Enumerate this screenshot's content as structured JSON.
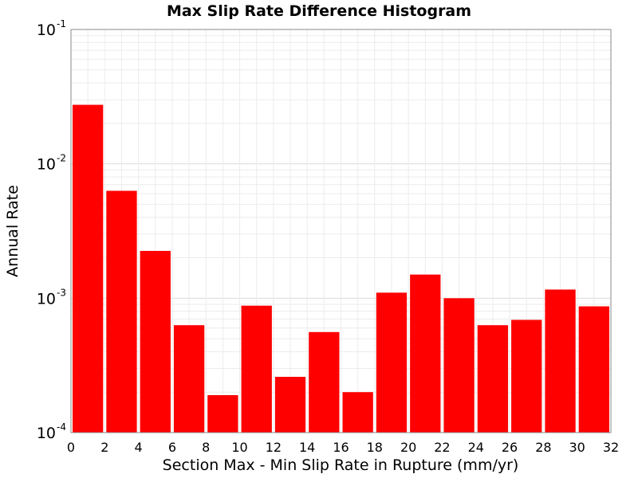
{
  "chart_data": {
    "type": "bar",
    "title": "Max Slip Rate Difference Histogram",
    "xlabel": "Section Max - Min Slip Rate in Rupture (mm/yr)",
    "ylabel": "Annual Rate",
    "xlim": [
      0,
      32
    ],
    "ylim": [
      0.0001,
      0.1
    ],
    "yscale": "log",
    "grid": true,
    "x_ticks": [
      "0",
      "2",
      "4",
      "6",
      "8",
      "10",
      "12",
      "14",
      "16",
      "18",
      "20",
      "22",
      "24",
      "26",
      "28",
      "30",
      "32"
    ],
    "y_ticks": [
      {
        "base": "10",
        "exp": "-4"
      },
      {
        "base": "10",
        "exp": "-3"
      },
      {
        "base": "10",
        "exp": "-2"
      },
      {
        "base": "10",
        "exp": "-1"
      }
    ],
    "bin_width": 2,
    "bins": [
      {
        "x": 1,
        "value": 0.0275
      },
      {
        "x": 3,
        "value": 0.0063
      },
      {
        "x": 5,
        "value": 0.00225
      },
      {
        "x": 7,
        "value": 0.00063
      },
      {
        "x": 9,
        "value": 0.00019
      },
      {
        "x": 11,
        "value": 0.00088
      },
      {
        "x": 13,
        "value": 0.00026
      },
      {
        "x": 15,
        "value": 0.00056
      },
      {
        "x": 17,
        "value": 0.0002
      },
      {
        "x": 19,
        "value": 0.0011
      },
      {
        "x": 21,
        "value": 0.0015
      },
      {
        "x": 23,
        "value": 0.001
      },
      {
        "x": 25,
        "value": 0.00063
      },
      {
        "x": 27,
        "value": 0.00069
      },
      {
        "x": 29,
        "value": 0.00116
      },
      {
        "x": 31,
        "value": 0.00087
      }
    ],
    "bar_color": "#ff0000"
  }
}
